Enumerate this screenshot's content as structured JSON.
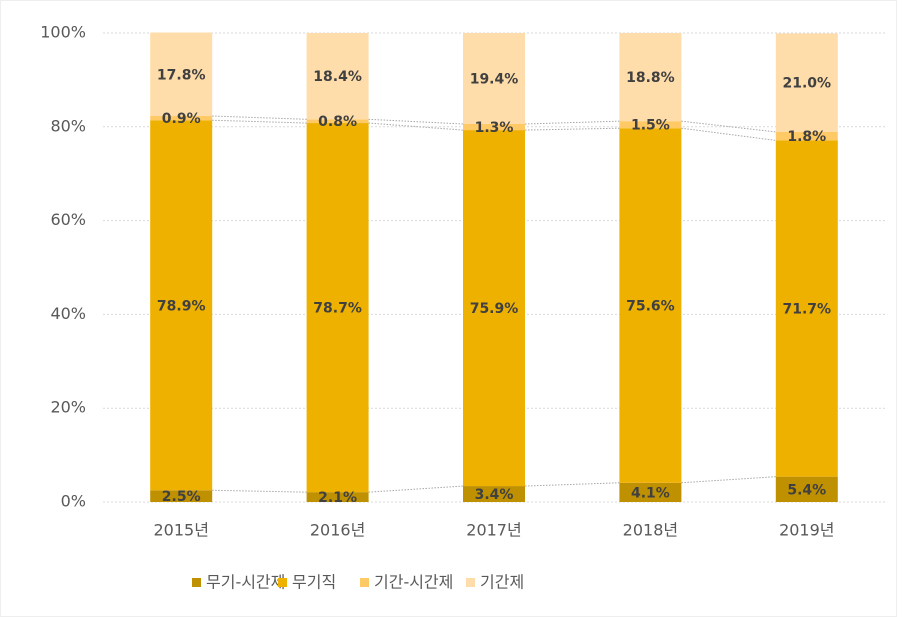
{
  "chart_data": {
    "type": "stacked_bar",
    "categories": [
      "2015년",
      "2016년",
      "2017년",
      "2018년",
      "2019년"
    ],
    "series": [
      {
        "name": "무기-시간제",
        "color": "#BF9000",
        "values": [
          2.5,
          2.1,
          3.4,
          4.1,
          5.4
        ],
        "value_labels": [
          "2.5%",
          "2.1%",
          "3.4%",
          "4.1%",
          "5.4%"
        ]
      },
      {
        "name": "무기직",
        "color": "#EEB100",
        "values": [
          78.9,
          78.7,
          75.9,
          75.6,
          71.7
        ],
        "value_labels": [
          "78.9%",
          "78.7%",
          "75.9%",
          "75.6%",
          "71.7%"
        ]
      },
      {
        "name": "기간-시간제",
        "color": "#FFC966",
        "values": [
          0.9,
          0.8,
          1.3,
          1.5,
          1.8
        ],
        "value_labels": [
          "0.9%",
          "0.8%",
          "1.3%",
          "1.5%",
          "1.8%"
        ]
      },
      {
        "name": "기간제",
        "color": "#FFDDAA",
        "values": [
          17.8,
          18.4,
          19.4,
          18.8,
          21.0
        ],
        "value_labels": [
          "17.8%",
          "18.4%",
          "19.4%",
          "18.8%",
          "21.0%"
        ]
      }
    ],
    "ylim": [
      0,
      100
    ],
    "yticks": [
      {
        "value": 0,
        "label": "0%"
      },
      {
        "value": 20,
        "label": "20%"
      },
      {
        "value": 40,
        "label": "40%"
      },
      {
        "value": 60,
        "label": "60%"
      },
      {
        "value": 80,
        "label": "80%"
      },
      {
        "value": 100,
        "label": "100%"
      }
    ],
    "grid": true,
    "legend": "bottom"
  }
}
